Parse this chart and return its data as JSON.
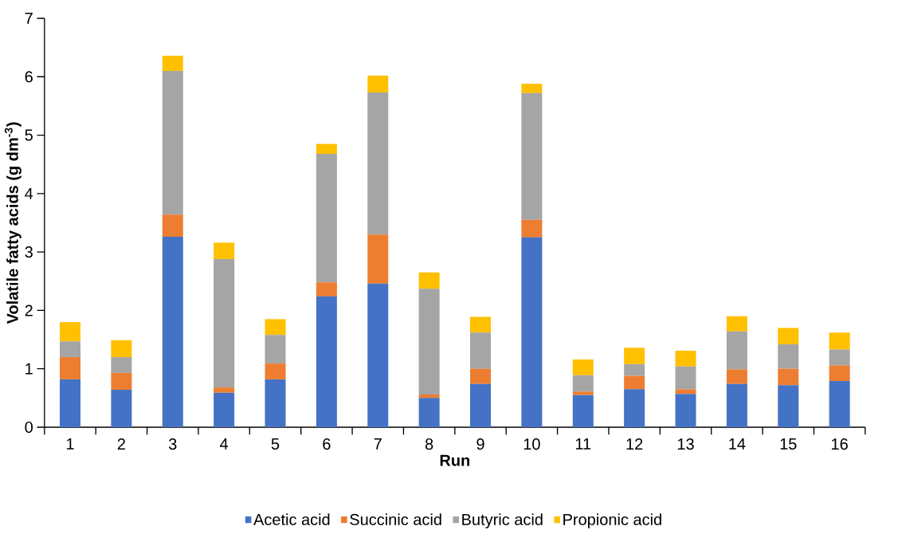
{
  "chart_data": {
    "type": "bar",
    "stacked": true,
    "xlabel": "Run",
    "ylabel": "**Volatile fatty acids (g dm$^{-3}$)**",
    "categories": [
      "1",
      "2",
      "3",
      "4",
      "5",
      "6",
      "7",
      "8",
      "9",
      "10",
      "11",
      "12",
      "13",
      "14",
      "15",
      "16"
    ],
    "series": [
      {
        "name": "Acetic acid",
        "color": "#4472c4",
        "values": [
          0.82,
          0.64,
          3.26,
          0.59,
          0.82,
          2.24,
          2.46,
          0.5,
          0.74,
          3.25,
          0.55,
          0.65,
          0.57,
          0.74,
          0.72,
          0.79
        ]
      },
      {
        "name": "Succinic acid",
        "color": "#ed7d31",
        "values": [
          0.38,
          0.29,
          0.38,
          0.09,
          0.27,
          0.24,
          0.84,
          0.06,
          0.26,
          0.3,
          0.06,
          0.23,
          0.08,
          0.25,
          0.28,
          0.27
        ]
      },
      {
        "name": "Butyric acid",
        "color": "#a5a5a5",
        "values": [
          0.27,
          0.27,
          2.46,
          2.2,
          0.49,
          2.2,
          2.43,
          1.81,
          0.62,
          2.17,
          0.28,
          0.2,
          0.39,
          0.65,
          0.42,
          0.27
        ]
      },
      {
        "name": "Propionic  acid",
        "color": "#ffc000",
        "values": [
          0.33,
          0.29,
          0.26,
          0.28,
          0.27,
          0.17,
          0.29,
          0.28,
          0.27,
          0.16,
          0.27,
          0.28,
          0.27,
          0.26,
          0.28,
          0.29
        ]
      }
    ],
    "ylim": [
      0,
      7
    ],
    "yticks": [
      0,
      1,
      2,
      3,
      4,
      5,
      6,
      7
    ],
    "grid": false,
    "legend": "bottom"
  }
}
